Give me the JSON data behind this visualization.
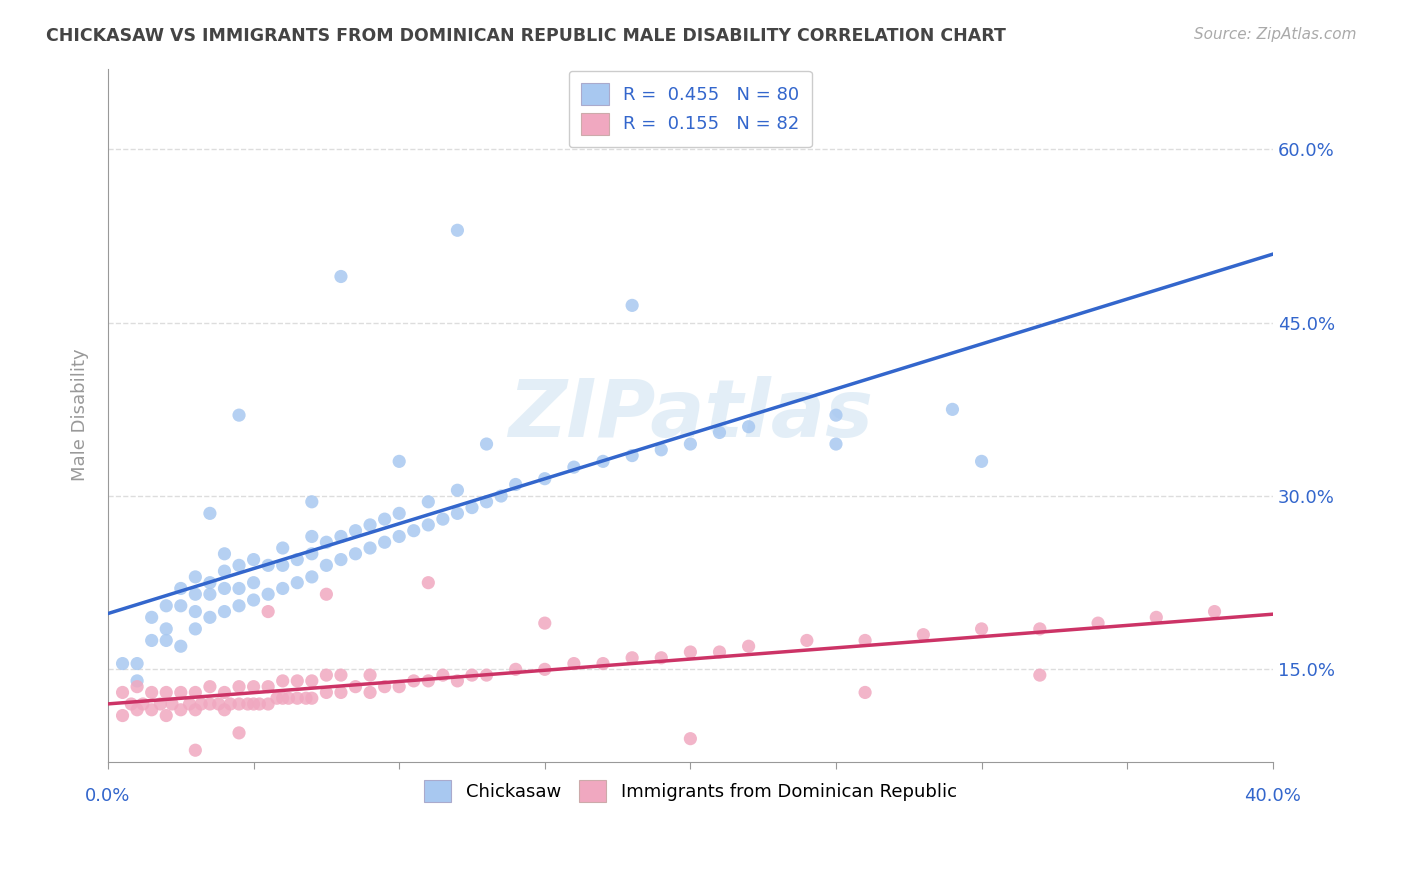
{
  "title": "CHICKASAW VS IMMIGRANTS FROM DOMINICAN REPUBLIC MALE DISABILITY CORRELATION CHART",
  "source": "Source: ZipAtlas.com",
  "ylabel": "Male Disability",
  "legend_labels": [
    "Chickasaw",
    "Immigrants from Dominican Republic"
  ],
  "series1_R": 0.455,
  "series1_N": 80,
  "series2_R": 0.155,
  "series2_N": 82,
  "series1_color": "#a8c8f0",
  "series2_color": "#f0a8c0",
  "series1_line_color": "#3366cc",
  "series2_line_color": "#cc3366",
  "ytick_labels": [
    "15.0%",
    "30.0%",
    "45.0%",
    "60.0%"
  ],
  "ytick_values": [
    0.15,
    0.3,
    0.45,
    0.6
  ],
  "xlim": [
    0.0,
    0.4
  ],
  "ylim": [
    0.07,
    0.67
  ],
  "background_color": "#ffffff",
  "title_color": "#444444",
  "axis_color": "#999999",
  "grid_color": "#dddddd",
  "watermark_color": "#c8dff0",
  "series1_x": [
    0.005,
    0.01,
    0.01,
    0.015,
    0.015,
    0.02,
    0.02,
    0.02,
    0.025,
    0.025,
    0.025,
    0.03,
    0.03,
    0.03,
    0.03,
    0.035,
    0.035,
    0.035,
    0.04,
    0.04,
    0.04,
    0.04,
    0.045,
    0.045,
    0.045,
    0.05,
    0.05,
    0.05,
    0.055,
    0.055,
    0.06,
    0.06,
    0.06,
    0.065,
    0.065,
    0.07,
    0.07,
    0.07,
    0.075,
    0.075,
    0.08,
    0.08,
    0.085,
    0.085,
    0.09,
    0.09,
    0.095,
    0.095,
    0.1,
    0.1,
    0.105,
    0.11,
    0.11,
    0.115,
    0.12,
    0.12,
    0.125,
    0.13,
    0.135,
    0.14,
    0.15,
    0.16,
    0.17,
    0.18,
    0.19,
    0.2,
    0.21,
    0.22,
    0.25,
    0.29,
    0.045,
    0.08,
    0.12,
    0.18,
    0.25,
    0.3,
    0.035,
    0.07,
    0.1,
    0.13
  ],
  "series1_y": [
    0.155,
    0.155,
    0.14,
    0.175,
    0.195,
    0.175,
    0.205,
    0.185,
    0.17,
    0.205,
    0.22,
    0.185,
    0.2,
    0.215,
    0.23,
    0.195,
    0.215,
    0.225,
    0.2,
    0.22,
    0.235,
    0.25,
    0.205,
    0.22,
    0.24,
    0.21,
    0.225,
    0.245,
    0.215,
    0.24,
    0.22,
    0.24,
    0.255,
    0.225,
    0.245,
    0.23,
    0.25,
    0.265,
    0.24,
    0.26,
    0.245,
    0.265,
    0.25,
    0.27,
    0.255,
    0.275,
    0.26,
    0.28,
    0.265,
    0.285,
    0.27,
    0.275,
    0.295,
    0.28,
    0.285,
    0.305,
    0.29,
    0.295,
    0.3,
    0.31,
    0.315,
    0.325,
    0.33,
    0.335,
    0.34,
    0.345,
    0.355,
    0.36,
    0.37,
    0.375,
    0.37,
    0.49,
    0.53,
    0.465,
    0.345,
    0.33,
    0.285,
    0.295,
    0.33,
    0.345
  ],
  "series2_x": [
    0.005,
    0.005,
    0.008,
    0.01,
    0.01,
    0.012,
    0.015,
    0.015,
    0.018,
    0.02,
    0.02,
    0.022,
    0.025,
    0.025,
    0.028,
    0.03,
    0.03,
    0.032,
    0.035,
    0.035,
    0.038,
    0.04,
    0.04,
    0.042,
    0.045,
    0.045,
    0.048,
    0.05,
    0.05,
    0.052,
    0.055,
    0.055,
    0.058,
    0.06,
    0.06,
    0.062,
    0.065,
    0.065,
    0.068,
    0.07,
    0.07,
    0.075,
    0.075,
    0.08,
    0.08,
    0.085,
    0.09,
    0.09,
    0.095,
    0.1,
    0.105,
    0.11,
    0.115,
    0.12,
    0.125,
    0.13,
    0.14,
    0.15,
    0.16,
    0.17,
    0.18,
    0.19,
    0.2,
    0.21,
    0.22,
    0.24,
    0.26,
    0.28,
    0.3,
    0.32,
    0.34,
    0.36,
    0.38,
    0.055,
    0.075,
    0.11,
    0.15,
    0.2,
    0.26,
    0.32,
    0.03,
    0.045
  ],
  "series2_y": [
    0.11,
    0.13,
    0.12,
    0.115,
    0.135,
    0.12,
    0.115,
    0.13,
    0.12,
    0.11,
    0.13,
    0.12,
    0.115,
    0.13,
    0.12,
    0.115,
    0.13,
    0.12,
    0.12,
    0.135,
    0.12,
    0.115,
    0.13,
    0.12,
    0.12,
    0.135,
    0.12,
    0.12,
    0.135,
    0.12,
    0.12,
    0.135,
    0.125,
    0.125,
    0.14,
    0.125,
    0.125,
    0.14,
    0.125,
    0.125,
    0.14,
    0.13,
    0.145,
    0.13,
    0.145,
    0.135,
    0.13,
    0.145,
    0.135,
    0.135,
    0.14,
    0.14,
    0.145,
    0.14,
    0.145,
    0.145,
    0.15,
    0.15,
    0.155,
    0.155,
    0.16,
    0.16,
    0.165,
    0.165,
    0.17,
    0.175,
    0.175,
    0.18,
    0.185,
    0.185,
    0.19,
    0.195,
    0.2,
    0.2,
    0.215,
    0.225,
    0.19,
    0.09,
    0.13,
    0.145,
    0.08,
    0.095
  ]
}
